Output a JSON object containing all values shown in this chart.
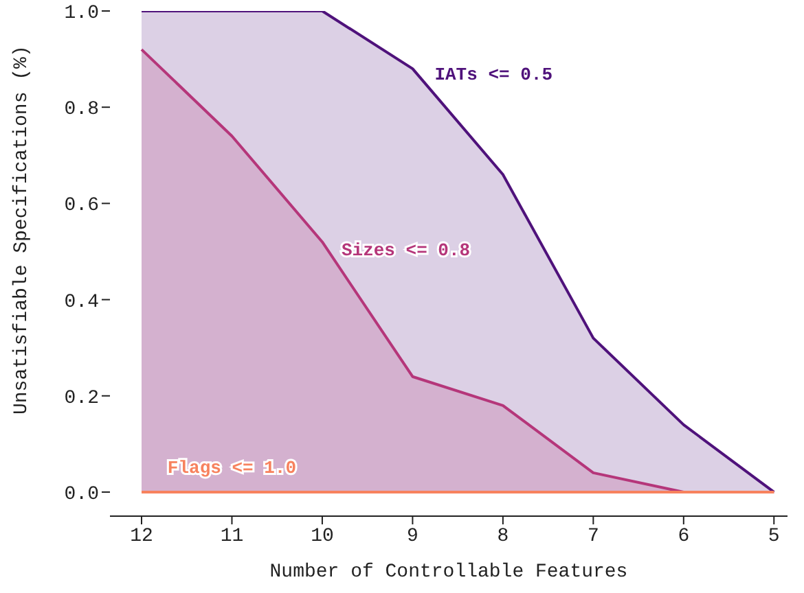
{
  "chart_data": {
    "type": "area",
    "xlabel": "Number of Controllable Features",
    "ylabel": "Unsatisfiable Specifications (%)",
    "x": [
      12,
      11,
      10,
      9,
      8,
      7,
      6,
      5
    ],
    "series": [
      {
        "name": "IATs <= 0.5",
        "color": "#4f127b",
        "values": [
          1,
          1,
          1,
          0.88,
          0.66,
          0.32,
          0.14,
          0
        ]
      },
      {
        "name": "Sizes <= 0.8",
        "color": "#b5367a",
        "values": [
          0.92,
          0.74,
          0.52,
          0.24,
          0.18,
          0.04,
          0,
          0
        ]
      },
      {
        "name": "Flags <= 1.0",
        "type": "line",
        "color": "#f7825e",
        "values": [
          0,
          0,
          0,
          0,
          0,
          0,
          0,
          0
        ]
      }
    ],
    "xlim": [
      12.35,
      4.85
    ],
    "xticks": [
      12,
      11,
      10,
      9,
      8,
      7,
      6,
      5
    ],
    "ylim": [
      -0.05,
      1.0
    ],
    "yticks": [
      {
        "value": 0,
        "label": "0.0"
      },
      0.2,
      0.4,
      0.6,
      0.8,
      {
        "value": 1,
        "label": "1.0"
      }
    ],
    "grid": false,
    "legend": false
  }
}
